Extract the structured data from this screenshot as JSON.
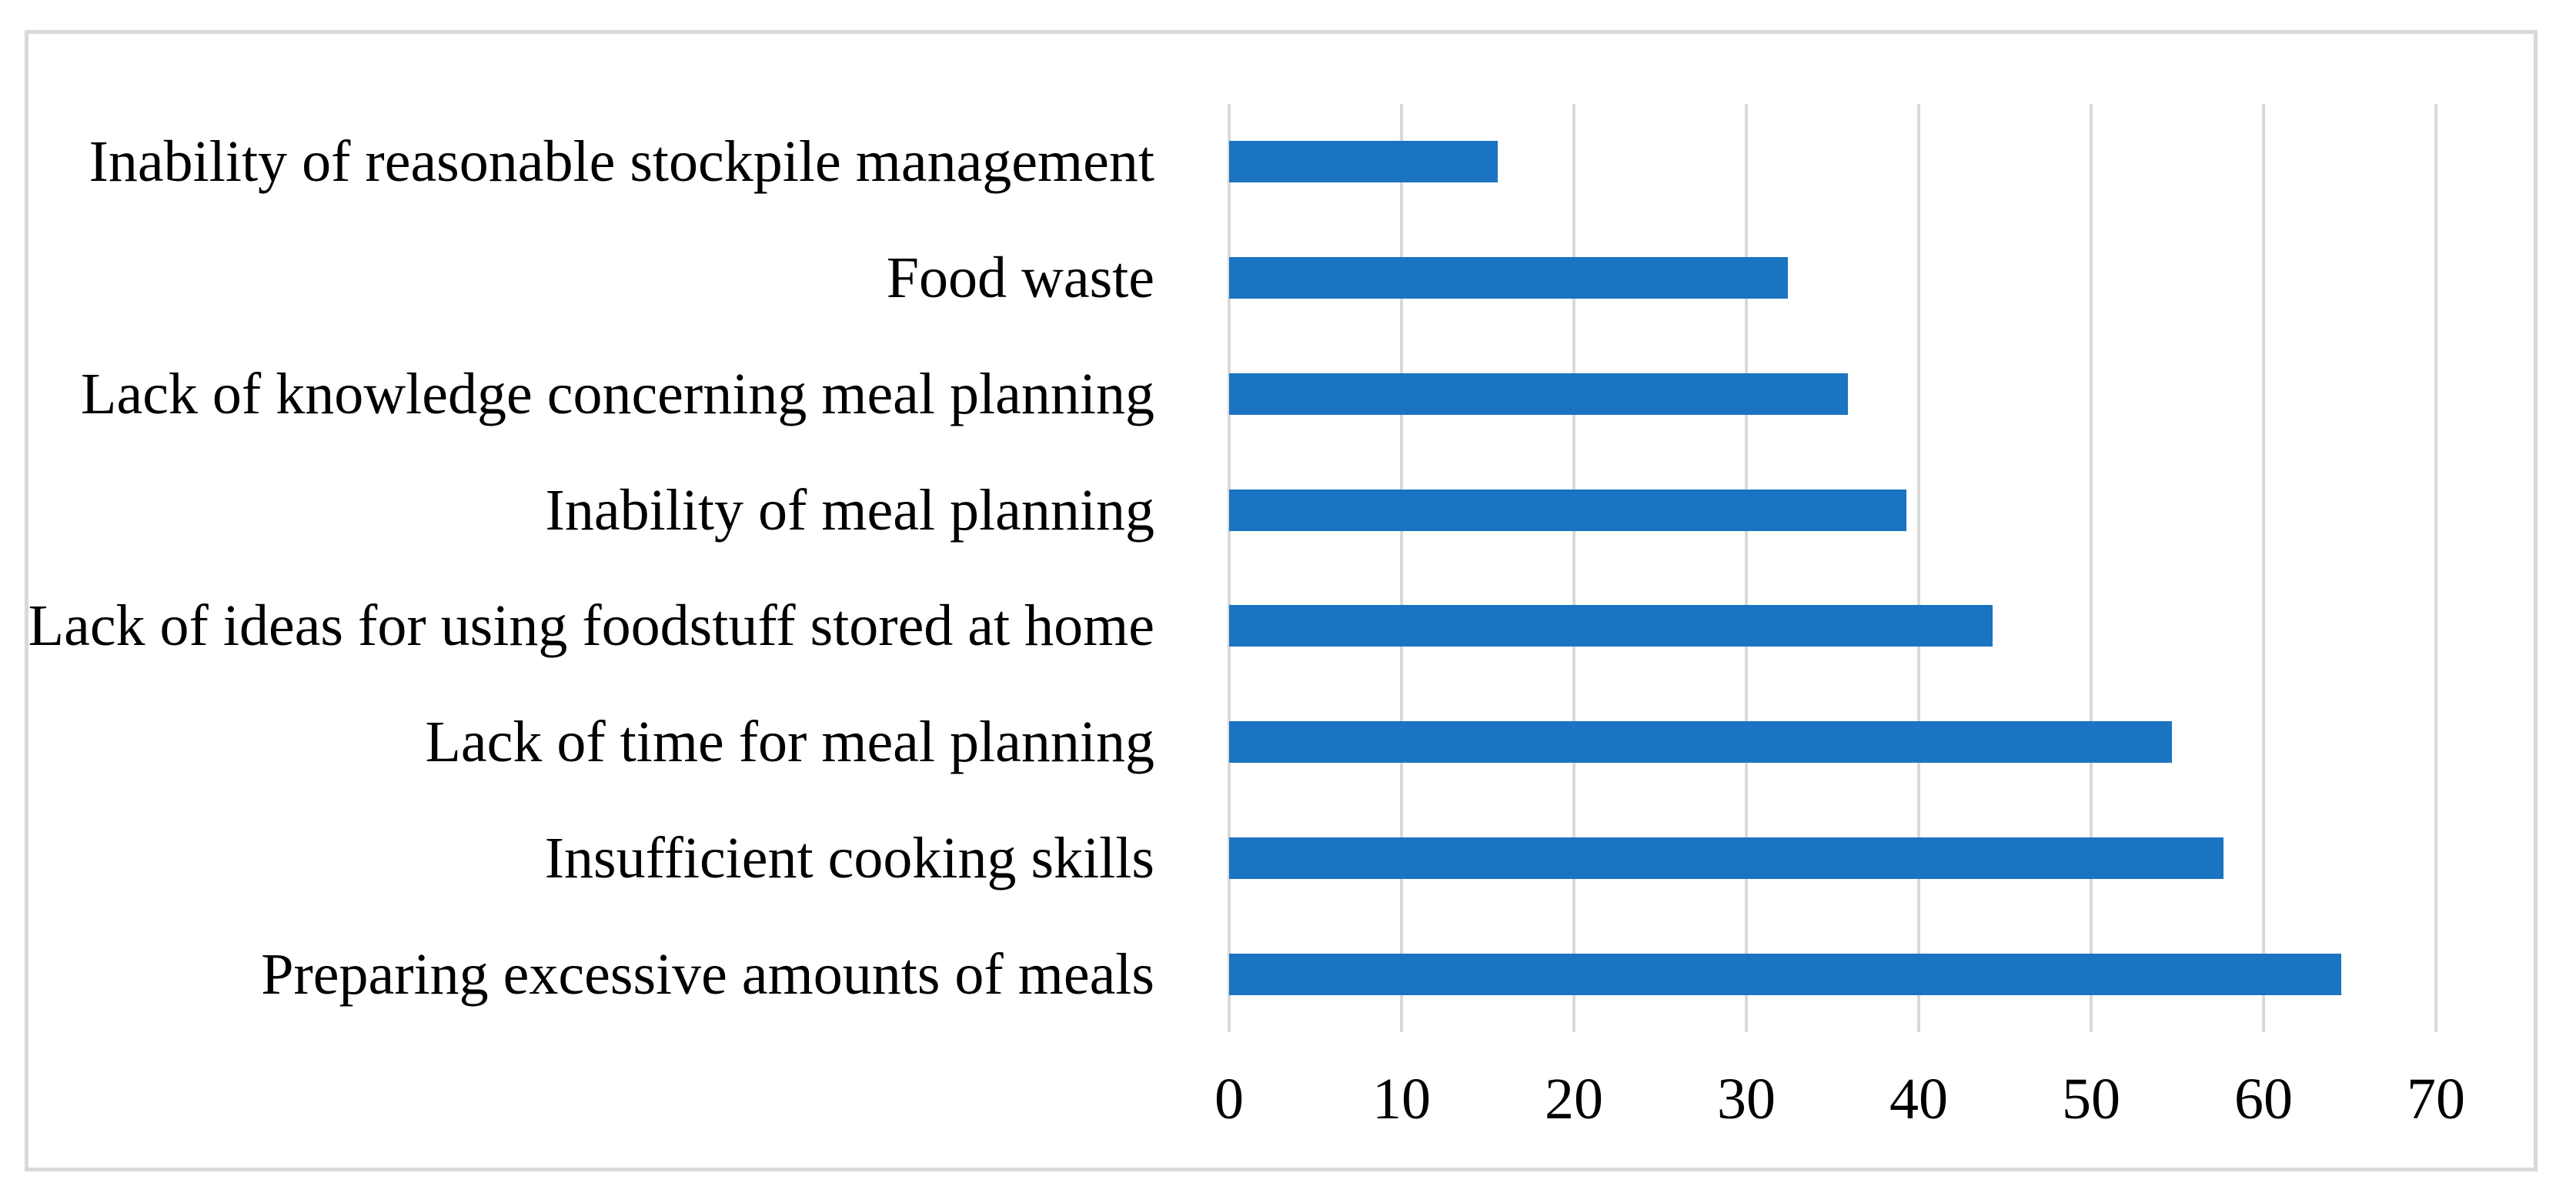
{
  "figure": {
    "background_color": "#FFFFFF",
    "border_color": "#D9D9D9",
    "text_color": "#000000"
  },
  "chart_data": {
    "type": "bar",
    "orientation": "horizontal",
    "title": "",
    "xlabel": "",
    "ylabel": "",
    "categories": [
      "Inability of reasonable stockpile management",
      "Food waste",
      "Lack of knowledge concerning meal planning",
      "Inability of meal planning",
      "Lack of ideas for using foodstuff stored at home",
      "Lack of time for meal planning",
      "Insufficient cooking skills",
      "Preparing excessive amounts of meals"
    ],
    "values": [
      15.6,
      32.4,
      35.9,
      39.3,
      44.3,
      54.7,
      57.7,
      64.5
    ],
    "xlim": [
      0,
      70
    ],
    "x_tick_labels": [
      "0",
      "10",
      "20",
      "30",
      "40",
      "50",
      "60",
      "70"
    ],
    "x_ticks": [
      0,
      10,
      20,
      30,
      40,
      50,
      60,
      70
    ],
    "grid": "vertical-gridlines-on",
    "legend": "none",
    "data_labels": "none",
    "bar_color": "#1B74C1",
    "gridline_color": "#D9D9D9"
  }
}
